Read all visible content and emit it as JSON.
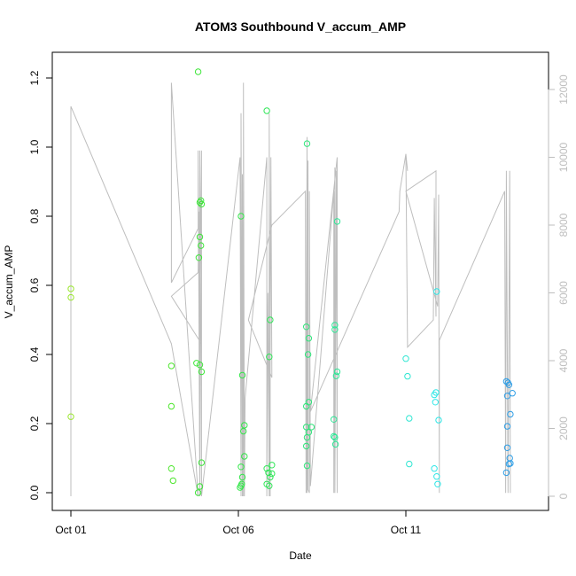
{
  "chart_data": {
    "type": "scatter",
    "title": "ATOM3 Southbound V_accum_AMP",
    "xlabel": "Date",
    "ylabel": "V_accum_AMP",
    "x_ticks": [
      "Oct 01",
      "Oct 06",
      "Oct 11"
    ],
    "xlim": [
      "2023-10-01",
      "2023-10-14.5"
    ],
    "ylim": [
      0,
      1.22
    ],
    "y_ticks": [
      "0.0",
      "0.2",
      "0.4",
      "0.6",
      "0.8",
      "1.0",
      "1.2"
    ],
    "y2lim": [
      0,
      12200
    ],
    "y2_ticks": [
      "0",
      "2000",
      "4000",
      "6000",
      "8000",
      "10000",
      "12000"
    ],
    "y2_color": "#bebebe",
    "grid": false,
    "legend": "none",
    "series": [
      {
        "type": "scatter",
        "axis": "left",
        "marker": "open-circle",
        "color_note": "colour varies along the dates, from yellow-green through green and cyan to blue",
        "points": [
          {
            "x": 1.0,
            "y": 0.59,
            "color": "#9ae62e"
          },
          {
            "x": 1.0,
            "y": 0.565,
            "color": "#9ae62e"
          },
          {
            "x": 1.0,
            "y": 0.22,
            "color": "#9ae62e"
          },
          {
            "x": 4.0,
            "y": 0.367,
            "color": "#4ee62e"
          },
          {
            "x": 4.0,
            "y": 0.25,
            "color": "#4ee62e"
          },
          {
            "x": 4.0,
            "y": 0.07,
            "color": "#4ee62e"
          },
          {
            "x": 4.05,
            "y": 0.035,
            "color": "#4ee62e"
          },
          {
            "x": 4.8,
            "y": 1.218,
            "color": "#3ee63a"
          },
          {
            "x": 4.85,
            "y": 0.84,
            "color": "#3ee63a"
          },
          {
            "x": 4.88,
            "y": 0.845,
            "color": "#3ee63a"
          },
          {
            "x": 4.9,
            "y": 0.835,
            "color": "#3ee63a"
          },
          {
            "x": 4.85,
            "y": 0.74,
            "color": "#3ee63a"
          },
          {
            "x": 4.88,
            "y": 0.715,
            "color": "#3ee63a"
          },
          {
            "x": 4.82,
            "y": 0.68,
            "color": "#3ee63a"
          },
          {
            "x": 4.75,
            "y": 0.375,
            "color": "#3ee63a"
          },
          {
            "x": 4.85,
            "y": 0.37,
            "color": "#3ee63a"
          },
          {
            "x": 4.9,
            "y": 0.35,
            "color": "#3ee63a"
          },
          {
            "x": 4.9,
            "y": 0.087,
            "color": "#3ee63a"
          },
          {
            "x": 4.85,
            "y": 0.018,
            "color": "#3ee63a"
          },
          {
            "x": 4.8,
            "y": 0.0,
            "color": "#3ee63a"
          },
          {
            "x": 6.08,
            "y": 0.8,
            "color": "#34e64a"
          },
          {
            "x": 6.12,
            "y": 0.34,
            "color": "#34e64a"
          },
          {
            "x": 6.18,
            "y": 0.195,
            "color": "#34e64a"
          },
          {
            "x": 6.15,
            "y": 0.178,
            "color": "#34e64a"
          },
          {
            "x": 6.18,
            "y": 0.105,
            "color": "#34e64a"
          },
          {
            "x": 6.08,
            "y": 0.075,
            "color": "#34e64a"
          },
          {
            "x": 6.12,
            "y": 0.045,
            "color": "#34e64a"
          },
          {
            "x": 6.1,
            "y": 0.025,
            "color": "#34e64a"
          },
          {
            "x": 6.08,
            "y": 0.02,
            "color": "#34e64a"
          },
          {
            "x": 6.05,
            "y": 0.015,
            "color": "#34e64a"
          },
          {
            "x": 6.85,
            "y": 1.105,
            "color": "#30e658"
          },
          {
            "x": 6.95,
            "y": 0.5,
            "color": "#30e658"
          },
          {
            "x": 6.92,
            "y": 0.393,
            "color": "#30e658"
          },
          {
            "x": 7.0,
            "y": 0.08,
            "color": "#30e658"
          },
          {
            "x": 6.85,
            "y": 0.07,
            "color": "#30e658"
          },
          {
            "x": 6.9,
            "y": 0.058,
            "color": "#30e658"
          },
          {
            "x": 7.0,
            "y": 0.055,
            "color": "#30e658"
          },
          {
            "x": 6.95,
            "y": 0.045,
            "color": "#30e658"
          },
          {
            "x": 6.85,
            "y": 0.025,
            "color": "#30e658"
          },
          {
            "x": 6.92,
            "y": 0.02,
            "color": "#30e658"
          },
          {
            "x": 8.05,
            "y": 1.01,
            "color": "#2ee67a"
          },
          {
            "x": 8.03,
            "y": 0.48,
            "color": "#2ee67a"
          },
          {
            "x": 8.1,
            "y": 0.447,
            "color": "#2ee67a"
          },
          {
            "x": 8.08,
            "y": 0.4,
            "color": "#2ee67a"
          },
          {
            "x": 8.1,
            "y": 0.262,
            "color": "#2ee67a"
          },
          {
            "x": 8.03,
            "y": 0.25,
            "color": "#2ee67a"
          },
          {
            "x": 8.03,
            "y": 0.19,
            "color": "#2ee67a"
          },
          {
            "x": 8.18,
            "y": 0.19,
            "color": "#2ee67a"
          },
          {
            "x": 8.1,
            "y": 0.175,
            "color": "#2ee67a"
          },
          {
            "x": 8.05,
            "y": 0.16,
            "color": "#2ee67a"
          },
          {
            "x": 8.03,
            "y": 0.135,
            "color": "#2ee67a"
          },
          {
            "x": 8.05,
            "y": 0.078,
            "color": "#2ee67a"
          },
          {
            "x": 8.95,
            "y": 0.785,
            "color": "#2ee696"
          },
          {
            "x": 8.88,
            "y": 0.485,
            "color": "#2ee696"
          },
          {
            "x": 8.88,
            "y": 0.472,
            "color": "#2ee696"
          },
          {
            "x": 8.95,
            "y": 0.35,
            "color": "#2ee696"
          },
          {
            "x": 8.92,
            "y": 0.338,
            "color": "#2ee696"
          },
          {
            "x": 8.85,
            "y": 0.212,
            "color": "#2ee696"
          },
          {
            "x": 8.85,
            "y": 0.163,
            "color": "#2ee696"
          },
          {
            "x": 8.88,
            "y": 0.16,
            "color": "#2ee696"
          },
          {
            "x": 8.9,
            "y": 0.14,
            "color": "#2ee696"
          },
          {
            "x": 11.0,
            "y": 0.388,
            "color": "#2ee6d2"
          },
          {
            "x": 11.05,
            "y": 0.337,
            "color": "#2ee6d2"
          },
          {
            "x": 11.1,
            "y": 0.215,
            "color": "#2ee6d2"
          },
          {
            "x": 11.1,
            "y": 0.083,
            "color": "#2ee6d2"
          },
          {
            "x": 11.92,
            "y": 0.582,
            "color": "#2ee6e6"
          },
          {
            "x": 11.9,
            "y": 0.29,
            "color": "#2ee6e6"
          },
          {
            "x": 11.85,
            "y": 0.283,
            "color": "#2ee6e6"
          },
          {
            "x": 11.88,
            "y": 0.262,
            "color": "#2ee6e6"
          },
          {
            "x": 11.98,
            "y": 0.21,
            "color": "#2ee6e6"
          },
          {
            "x": 11.85,
            "y": 0.07,
            "color": "#2ee6e6"
          },
          {
            "x": 11.92,
            "y": 0.047,
            "color": "#2ee6e6"
          },
          {
            "x": 11.95,
            "y": 0.025,
            "color": "#2ee6e6"
          },
          {
            "x": 14.0,
            "y": 0.322,
            "color": "#2e9ee6"
          },
          {
            "x": 14.05,
            "y": 0.318,
            "color": "#2e9ee6"
          },
          {
            "x": 14.08,
            "y": 0.312,
            "color": "#2e9ee6"
          },
          {
            "x": 14.18,
            "y": 0.288,
            "color": "#2e9ee6"
          },
          {
            "x": 14.03,
            "y": 0.28,
            "color": "#2e9ee6"
          },
          {
            "x": 14.12,
            "y": 0.227,
            "color": "#2e9ee6"
          },
          {
            "x": 14.03,
            "y": 0.192,
            "color": "#2e9ee6"
          },
          {
            "x": 14.03,
            "y": 0.13,
            "color": "#2e9ee6"
          },
          {
            "x": 14.1,
            "y": 0.1,
            "color": "#2e9ee6"
          },
          {
            "x": 14.12,
            "y": 0.085,
            "color": "#2e9ee6"
          },
          {
            "x": 14.08,
            "y": 0.083,
            "color": "#2e9ee6"
          },
          {
            "x": 14.0,
            "y": 0.058,
            "color": "#2e9ee6"
          }
        ]
      },
      {
        "type": "line",
        "axis": "right",
        "color": "#bebebe",
        "points": [
          [
            1.0,
            0
          ],
          [
            1.0,
            11500
          ],
          [
            4.0,
            4500
          ],
          [
            4.8,
            0
          ],
          [
            4.0,
            12200
          ],
          [
            4.0,
            6300
          ],
          [
            4.8,
            7900
          ],
          [
            4.8,
            10200
          ],
          [
            4.85,
            0
          ],
          [
            4.85,
            10200
          ],
          [
            4.9,
            4500
          ],
          [
            4.0,
            5900
          ],
          [
            4.8,
            6600
          ],
          [
            4.82,
            8400
          ],
          [
            4.85,
            0
          ],
          [
            4.9,
            10200
          ],
          [
            4.9,
            0
          ],
          [
            6.05,
            10000
          ],
          [
            6.08,
            0
          ],
          [
            6.08,
            11300
          ],
          [
            6.12,
            0
          ],
          [
            6.12,
            9500
          ],
          [
            6.15,
            0
          ],
          [
            6.15,
            12200
          ],
          [
            6.18,
            0
          ],
          [
            6.2,
            2900
          ],
          [
            6.85,
            10000
          ],
          [
            6.85,
            0
          ],
          [
            6.88,
            6000
          ],
          [
            6.92,
            0
          ],
          [
            6.92,
            11300
          ],
          [
            6.95,
            0
          ],
          [
            6.95,
            4300
          ],
          [
            6.97,
            10000
          ],
          [
            7.0,
            3500
          ],
          [
            6.3,
            5200
          ],
          [
            7.0,
            8000
          ],
          [
            8.0,
            9000
          ],
          [
            8.02,
            100
          ],
          [
            8.05,
            10600
          ],
          [
            8.05,
            100
          ],
          [
            8.08,
            9900
          ],
          [
            8.08,
            200
          ],
          [
            8.12,
            100
          ],
          [
            8.12,
            9000
          ],
          [
            8.15,
            300
          ],
          [
            8.85,
            9000
          ],
          [
            8.85,
            100
          ],
          [
            8.88,
            9700
          ],
          [
            8.88,
            100
          ],
          [
            8.92,
            9600
          ],
          [
            8.95,
            100
          ],
          [
            8.95,
            10000
          ],
          [
            8.15,
            2500
          ],
          [
            10.8,
            8400
          ],
          [
            10.82,
            9000
          ],
          [
            11.0,
            10100
          ],
          [
            11.05,
            9600
          ],
          [
            11.0,
            10100
          ],
          [
            11.05,
            4400
          ],
          [
            11.82,
            5200
          ],
          [
            11.85,
            8800
          ],
          [
            11.9,
            5300
          ],
          [
            11.9,
            9600
          ],
          [
            11.0,
            9000
          ],
          [
            11.95,
            5600
          ],
          [
            11.98,
            8900
          ],
          [
            12.0,
            100
          ],
          [
            12.0,
            4600
          ],
          [
            13.95,
            9000
          ],
          [
            13.98,
            100
          ],
          [
            14.0,
            9600
          ],
          [
            14.05,
            100
          ],
          [
            14.1,
            9600
          ],
          [
            14.12,
            100
          ]
        ]
      }
    ]
  }
}
